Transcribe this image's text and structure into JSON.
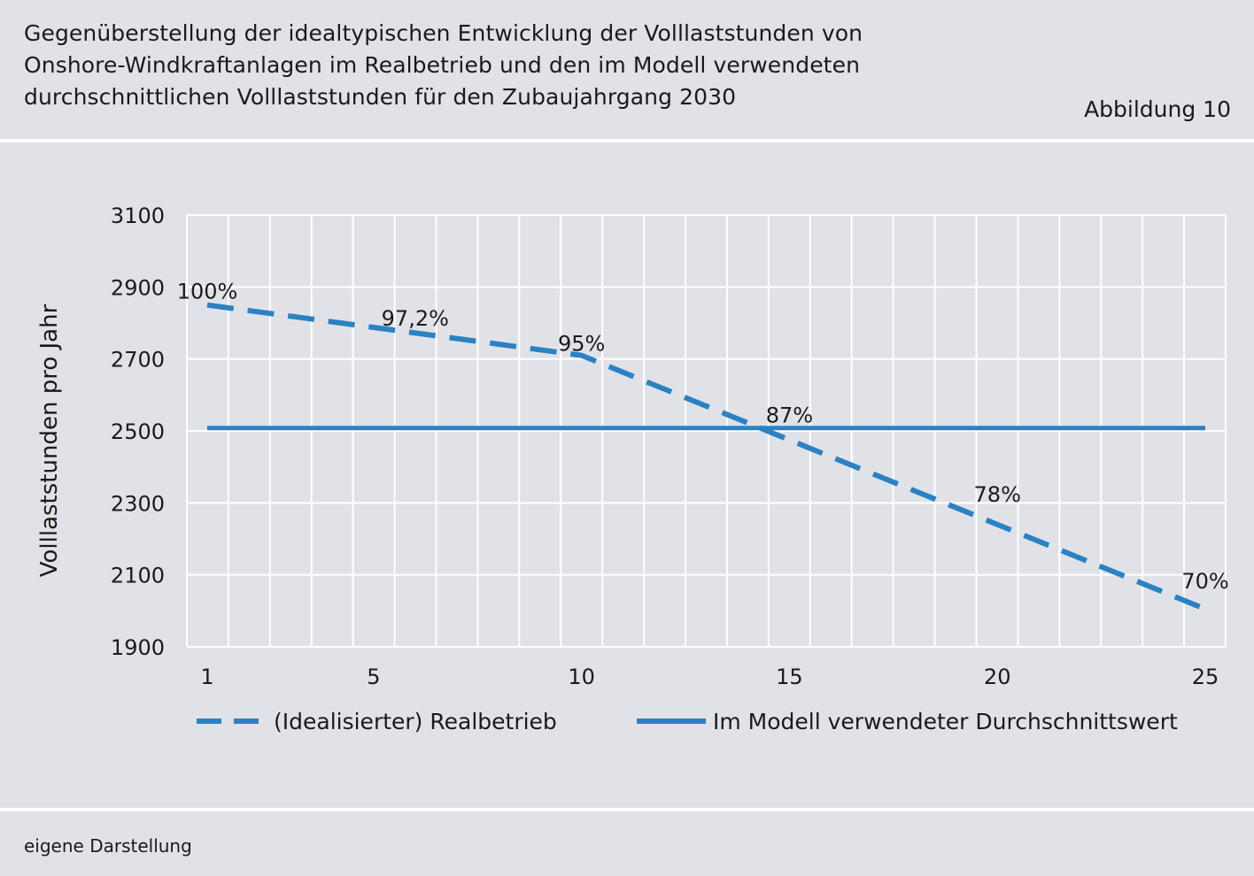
{
  "header": {
    "title_lines": [
      "Gegenüberstellung der idealtypischen Entwicklung der Volllaststunden von",
      "Onshore-Windkraftanlagen im Realbetrieb und den im Modell verwendeten",
      "durchschnittlichen Volllaststunden für den Zubaujahrgang 2030"
    ],
    "figure_label": "Abbildung 10"
  },
  "footer": {
    "source": "eigene Darstellung"
  },
  "colors": {
    "series": "#2a82c4",
    "grid": "#ffffff",
    "background": "#e1e2e7"
  },
  "chart_data": {
    "type": "line",
    "title": "",
    "ylabel": "Volllaststunden pro Jahr",
    "xlabel": "",
    "xlim": [
      1,
      25
    ],
    "ylim": [
      1900,
      3100
    ],
    "x_ticks": [
      1,
      5,
      10,
      15,
      20,
      25
    ],
    "y_ticks": [
      3100,
      2900,
      2700,
      2500,
      2300,
      2100,
      1900
    ],
    "grid": true,
    "legend_position": "bottom",
    "series": [
      {
        "name": "(Idealisierter) Realbetrieb",
        "style": "dashed",
        "color": "#2a82c4",
        "x": [
          1,
          10,
          25
        ],
        "y": [
          2850,
          2710,
          2005
        ]
      },
      {
        "name": "Im Modell verwendeter Durchschnittswert",
        "style": "solid",
        "color": "#2a82c4",
        "x": [
          1,
          25
        ],
        "y": [
          2508,
          2508
        ]
      }
    ],
    "annotations": [
      {
        "text": "100%",
        "x": 1,
        "y": 2890
      },
      {
        "text": "97,2%",
        "x": 6,
        "y": 2815
      },
      {
        "text": "95%",
        "x": 10,
        "y": 2745
      },
      {
        "text": "87%",
        "x": 15,
        "y": 2545
      },
      {
        "text": "78%",
        "x": 20,
        "y": 2325
      },
      {
        "text": "70%",
        "x": 25,
        "y": 2085
      }
    ]
  }
}
